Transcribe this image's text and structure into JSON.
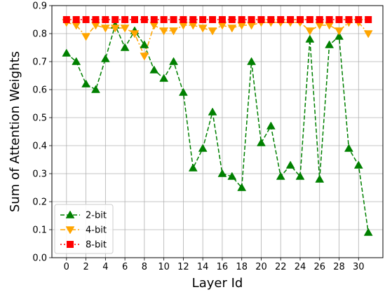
{
  "chart_data": {
    "type": "line",
    "xlabel": "Layer Id",
    "ylabel": "Sum of Attention Weights",
    "xlim": [
      -1.5,
      32.5
    ],
    "ylim": [
      0.0,
      0.9
    ],
    "xticks": [
      "0",
      "2",
      "4",
      "6",
      "8",
      "10",
      "12",
      "14",
      "16",
      "18",
      "20",
      "22",
      "24",
      "26",
      "28",
      "30"
    ],
    "yticks": [
      "0.0",
      "0.1",
      "0.2",
      "0.3",
      "0.4",
      "0.5",
      "0.6",
      "0.7",
      "0.8",
      "0.9"
    ],
    "grid": true,
    "legend_position": "lower-left",
    "x": [
      0,
      1,
      2,
      3,
      4,
      5,
      6,
      7,
      8,
      9,
      10,
      11,
      12,
      13,
      14,
      15,
      16,
      17,
      18,
      19,
      20,
      21,
      22,
      23,
      24,
      25,
      26,
      27,
      28,
      29,
      30,
      31
    ],
    "series": [
      {
        "name": "2-bit",
        "color": "#008000",
        "marker": "triangle-up",
        "linestyle": "dashed",
        "values": [
          0.73,
          0.7,
          0.62,
          0.6,
          0.71,
          0.83,
          0.75,
          0.81,
          0.76,
          0.67,
          0.64,
          0.7,
          0.59,
          0.32,
          0.39,
          0.52,
          0.3,
          0.29,
          0.25,
          0.7,
          0.41,
          0.47,
          0.29,
          0.33,
          0.29,
          0.78,
          0.28,
          0.76,
          0.79,
          0.39,
          0.33,
          0.09
        ]
      },
      {
        "name": "4-bit",
        "color": "#FFA500",
        "marker": "triangle-down",
        "linestyle": "dashdot",
        "values": [
          0.84,
          0.83,
          0.79,
          0.83,
          0.82,
          0.82,
          0.82,
          0.8,
          0.72,
          0.83,
          0.81,
          0.81,
          0.83,
          0.83,
          0.82,
          0.81,
          0.83,
          0.82,
          0.83,
          0.83,
          0.84,
          0.84,
          0.84,
          0.84,
          0.84,
          0.81,
          0.83,
          0.83,
          0.81,
          0.84,
          0.84,
          0.8
        ]
      },
      {
        "name": "8-bit",
        "color": "#FF0000",
        "marker": "square",
        "linestyle": "dotted",
        "values": [
          0.85,
          0.85,
          0.85,
          0.85,
          0.85,
          0.85,
          0.85,
          0.85,
          0.85,
          0.85,
          0.85,
          0.85,
          0.85,
          0.85,
          0.85,
          0.85,
          0.85,
          0.85,
          0.85,
          0.85,
          0.85,
          0.85,
          0.85,
          0.85,
          0.85,
          0.85,
          0.85,
          0.85,
          0.85,
          0.85,
          0.85,
          0.85
        ]
      }
    ]
  }
}
